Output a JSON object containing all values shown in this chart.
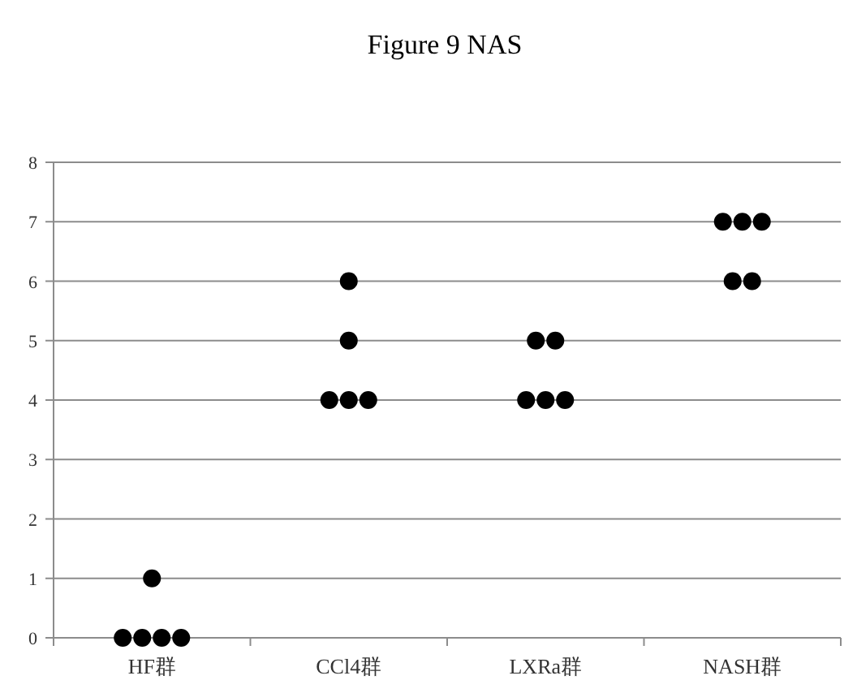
{
  "chart_data": {
    "type": "scatter",
    "title": "Figure 9   NAS",
    "categories": [
      "HF群",
      "CCl4群",
      "LXRa群",
      "NASH群"
    ],
    "series": [
      {
        "color": "#000000",
        "x": [
          "HF群",
          "HF群",
          "HF群",
          "HF群",
          "HF群",
          "CCl4群",
          "CCl4群",
          "CCl4群",
          "CCl4群",
          "CCl4群",
          "LXRa群",
          "LXRa群",
          "LXRa群",
          "LXRa群",
          "LXRa群",
          "NASH群",
          "NASH群",
          "NASH群",
          "NASH群",
          "NASH群"
        ],
        "values": [
          0,
          0,
          0,
          0,
          1,
          4,
          4,
          4,
          5,
          6,
          4,
          4,
          4,
          5,
          5,
          6,
          6,
          7,
          7,
          7
        ]
      }
    ],
    "ylim": [
      0,
      8
    ],
    "yticks": [
      0,
      1,
      2,
      3,
      4,
      5,
      6,
      7,
      8
    ],
    "grid": "y",
    "marker": "circle"
  }
}
